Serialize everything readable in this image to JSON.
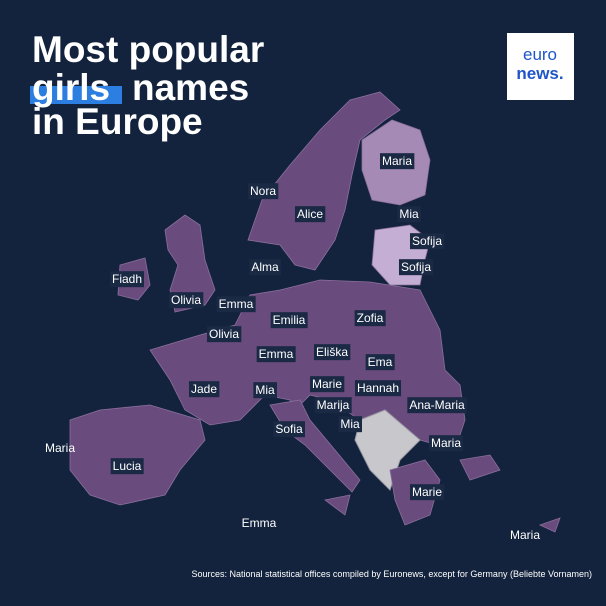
{
  "header": {
    "title_line1": "Most popular",
    "title_highlight": "girls",
    "title_rest": "names",
    "title_line3": "in Europe"
  },
  "logo": {
    "top": "euro",
    "bottom": "news."
  },
  "labels": [
    "Maria",
    "Nora",
    "Alice",
    "Mia",
    "Sofija",
    "Alma",
    "Sofija",
    "Fiadh",
    "Olivia",
    "Emma",
    "Emilia",
    "Zofia",
    "Olivia",
    "Emma",
    "Eliška",
    "Ema",
    "Jade",
    "Mia",
    "Marie",
    "Hannah",
    "Marija",
    "Ana-Maria",
    "Mia",
    "Sofia",
    "Maria",
    "Maria",
    "Lucia",
    "Marie",
    "Emma",
    "Maria"
  ],
  "source": "Sources: National statistical offices compiled by Euronews, except for Germany (Beliebte Vornamen)"
}
